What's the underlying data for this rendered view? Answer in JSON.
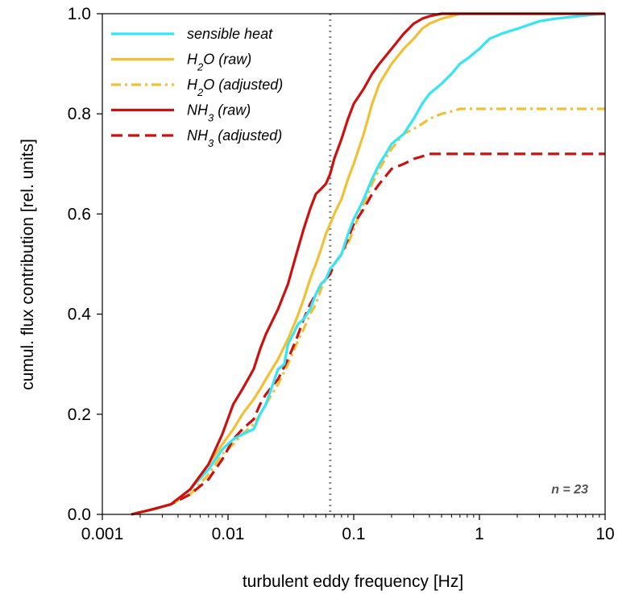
{
  "chart_data": {
    "type": "line",
    "xlabel": "turbulent eddy frequency [Hz]",
    "ylabel": "cumul. flux contribution [rel. units]",
    "xscale": "log",
    "xlim": [
      0.001,
      10
    ],
    "ylim": [
      0,
      1
    ],
    "x_ticks": [
      {
        "value": 0.001,
        "label": "0.001"
      },
      {
        "value": 0.01,
        "label": "0.01"
      },
      {
        "value": 0.1,
        "label": "0.1"
      },
      {
        "value": 1,
        "label": "1"
      },
      {
        "value": 10,
        "label": "10"
      }
    ],
    "y_ticks": [
      {
        "value": 0,
        "label": "0.0"
      },
      {
        "value": 0.2,
        "label": "0.2"
      },
      {
        "value": 0.4,
        "label": "0.4"
      },
      {
        "value": 0.6,
        "label": "0.6"
      },
      {
        "value": 0.8,
        "label": "0.8"
      },
      {
        "value": 1,
        "label": "1.0"
      }
    ],
    "grid": false,
    "legend_position": "top-left",
    "reference_line": {
      "x": 0.065,
      "style": "dotted",
      "color": "#888888"
    },
    "annotation": "n = 23",
    "series": [
      {
        "name": "sensible heat",
        "color": "#33E5F5",
        "style": "solid",
        "x": [
          0.0017,
          0.0025,
          0.0035,
          0.005,
          0.007,
          0.009,
          0.011,
          0.013,
          0.016,
          0.018,
          0.02,
          0.022,
          0.025,
          0.028,
          0.03,
          0.033,
          0.036,
          0.04,
          0.045,
          0.05,
          0.055,
          0.06,
          0.065,
          0.07,
          0.08,
          0.09,
          0.1,
          0.11,
          0.12,
          0.14,
          0.16,
          0.18,
          0.2,
          0.25,
          0.3,
          0.35,
          0.4,
          0.5,
          0.6,
          0.7,
          0.8,
          1.0,
          1.2,
          1.5,
          2.0,
          3.0,
          4.0,
          6.0,
          8.0,
          10.0
        ],
        "y": [
          0.0,
          0.01,
          0.02,
          0.05,
          0.09,
          0.13,
          0.15,
          0.16,
          0.17,
          0.2,
          0.22,
          0.25,
          0.29,
          0.3,
          0.34,
          0.36,
          0.38,
          0.39,
          0.41,
          0.44,
          0.46,
          0.47,
          0.49,
          0.5,
          0.52,
          0.56,
          0.59,
          0.61,
          0.63,
          0.67,
          0.7,
          0.72,
          0.74,
          0.76,
          0.79,
          0.82,
          0.84,
          0.86,
          0.88,
          0.9,
          0.91,
          0.93,
          0.95,
          0.96,
          0.97,
          0.985,
          0.99,
          0.995,
          0.998,
          1.0
        ]
      },
      {
        "name": "H2O (raw)",
        "color": "#F2C035",
        "style": "solid",
        "x": [
          0.0017,
          0.0025,
          0.0035,
          0.005,
          0.007,
          0.009,
          0.011,
          0.013,
          0.016,
          0.018,
          0.02,
          0.025,
          0.03,
          0.035,
          0.04,
          0.045,
          0.05,
          0.055,
          0.06,
          0.065,
          0.07,
          0.08,
          0.09,
          0.1,
          0.12,
          0.14,
          0.16,
          0.2,
          0.25,
          0.3,
          0.35,
          0.4,
          0.5,
          0.6,
          0.7,
          0.8,
          1.0,
          1.5,
          2.0,
          3.0,
          5.0,
          10.0
        ],
        "y": [
          0.0,
          0.01,
          0.02,
          0.05,
          0.1,
          0.14,
          0.17,
          0.2,
          0.23,
          0.25,
          0.27,
          0.31,
          0.35,
          0.39,
          0.43,
          0.47,
          0.5,
          0.53,
          0.56,
          0.58,
          0.6,
          0.63,
          0.67,
          0.7,
          0.76,
          0.82,
          0.86,
          0.9,
          0.93,
          0.95,
          0.97,
          0.98,
          0.99,
          0.995,
          1.0,
          1.0,
          1.0,
          1.0,
          1.0,
          1.0,
          1.0,
          1.0
        ]
      },
      {
        "name": "H2O (adjusted)",
        "color": "#F2C035",
        "style": "dashdot",
        "x": [
          0.0017,
          0.0025,
          0.0035,
          0.005,
          0.007,
          0.009,
          0.011,
          0.013,
          0.016,
          0.018,
          0.02,
          0.025,
          0.03,
          0.035,
          0.04,
          0.045,
          0.05,
          0.055,
          0.06,
          0.065,
          0.07,
          0.08,
          0.09,
          0.1,
          0.12,
          0.14,
          0.16,
          0.2,
          0.25,
          0.3,
          0.35,
          0.4,
          0.5,
          0.6,
          0.7,
          0.8,
          1.0,
          1.5,
          2.0,
          3.0,
          5.0,
          10.0
        ],
        "y": [
          0.0,
          0.01,
          0.02,
          0.04,
          0.08,
          0.12,
          0.14,
          0.16,
          0.18,
          0.2,
          0.22,
          0.26,
          0.3,
          0.34,
          0.37,
          0.4,
          0.42,
          0.45,
          0.47,
          0.48,
          0.5,
          0.52,
          0.54,
          0.57,
          0.62,
          0.66,
          0.69,
          0.73,
          0.76,
          0.77,
          0.78,
          0.79,
          0.8,
          0.805,
          0.81,
          0.81,
          0.81,
          0.81,
          0.81,
          0.81,
          0.81,
          0.81
        ]
      },
      {
        "name": "NH3 (raw)",
        "color": "#CC1111",
        "style": "solid",
        "x": [
          0.0017,
          0.0025,
          0.0035,
          0.005,
          0.007,
          0.009,
          0.011,
          0.013,
          0.016,
          0.018,
          0.02,
          0.025,
          0.03,
          0.035,
          0.04,
          0.045,
          0.05,
          0.055,
          0.06,
          0.065,
          0.07,
          0.08,
          0.09,
          0.1,
          0.12,
          0.14,
          0.16,
          0.2,
          0.25,
          0.3,
          0.35,
          0.4,
          0.5,
          0.6,
          0.8,
          1.0,
          2.0,
          5.0,
          10.0
        ],
        "y": [
          0.0,
          0.01,
          0.02,
          0.05,
          0.1,
          0.16,
          0.22,
          0.25,
          0.29,
          0.33,
          0.36,
          0.41,
          0.46,
          0.52,
          0.57,
          0.61,
          0.64,
          0.65,
          0.66,
          0.68,
          0.71,
          0.75,
          0.79,
          0.82,
          0.85,
          0.88,
          0.9,
          0.93,
          0.96,
          0.98,
          0.99,
          0.995,
          1.0,
          1.0,
          1.0,
          1.0,
          1.0,
          1.0,
          1.0
        ]
      },
      {
        "name": "NH3 (adjusted)",
        "color": "#CC1111",
        "style": "dashed",
        "x": [
          0.0017,
          0.0025,
          0.0035,
          0.005,
          0.007,
          0.009,
          0.011,
          0.013,
          0.016,
          0.018,
          0.02,
          0.025,
          0.03,
          0.035,
          0.04,
          0.045,
          0.05,
          0.055,
          0.06,
          0.065,
          0.07,
          0.08,
          0.09,
          0.1,
          0.12,
          0.14,
          0.16,
          0.2,
          0.25,
          0.3,
          0.35,
          0.4,
          0.5,
          0.6,
          0.8,
          1.0,
          2.0,
          5.0,
          10.0
        ],
        "y": [
          0.0,
          0.01,
          0.02,
          0.04,
          0.07,
          0.11,
          0.15,
          0.17,
          0.19,
          0.22,
          0.24,
          0.27,
          0.31,
          0.35,
          0.39,
          0.42,
          0.44,
          0.46,
          0.47,
          0.48,
          0.5,
          0.52,
          0.55,
          0.58,
          0.61,
          0.64,
          0.66,
          0.69,
          0.7,
          0.71,
          0.715,
          0.72,
          0.72,
          0.72,
          0.72,
          0.72,
          0.72,
          0.72,
          0.72
        ]
      }
    ]
  }
}
